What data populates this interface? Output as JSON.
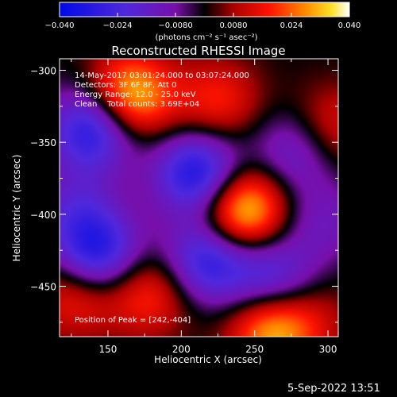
{
  "chart_data": {
    "type": "heatmap",
    "title": "Reconstructed RHESSI Image",
    "xlabel": "Heliocentric X (arcsec)",
    "ylabel": "Heliocentric Y (arcsec)",
    "xlim": [
      117,
      307
    ],
    "ylim": [
      -485,
      -292
    ],
    "xticks": [
      150,
      200,
      250,
      300
    ],
    "yticks": [
      -300,
      -350,
      -400,
      -450
    ],
    "colorbar": {
      "label": "(photons cm⁻² s⁻¹ asec⁻²)",
      "range": [
        -0.04,
        0.04
      ],
      "ticks": [
        "−0.040",
        "−0.024",
        "−0.0080",
        "0.0080",
        "0.024",
        "0.040"
      ],
      "colormap": "rainbow-to-white"
    },
    "annotations": [
      "14-May-2017 03:01:24.000 to 03:07:24.000",
      "Detectors: 3F 6F 8F, Att 0",
      "Energy Range: 12.0 - 25.0 keV",
      "Clean    Total counts: 3.69E+04"
    ],
    "peak_label": "Position of Peak = [242,-404]",
    "peak": [
      242,
      -404
    ],
    "features": [
      {
        "x": 242,
        "y": -397,
        "value": 0.04
      },
      {
        "x": 165,
        "y": -318,
        "value": 0.036
      },
      {
        "x": 225,
        "y": -322,
        "value": 0.018
      },
      {
        "x": 178,
        "y": -455,
        "value": 0.02
      },
      {
        "x": 262,
        "y": -480,
        "value": 0.032
      },
      {
        "x": 128,
        "y": -455,
        "value": 0.02
      },
      {
        "x": 302,
        "y": -340,
        "value": 0.016
      },
      {
        "x": 292,
        "y": -472,
        "value": 0.008
      },
      {
        "x": 140,
        "y": -340,
        "value": -0.034
      },
      {
        "x": 212,
        "y": -372,
        "value": -0.036
      },
      {
        "x": 142,
        "y": -428,
        "value": -0.034
      },
      {
        "x": 218,
        "y": -432,
        "value": -0.03
      },
      {
        "x": 262,
        "y": -445,
        "value": -0.024
      },
      {
        "x": 278,
        "y": -356,
        "value": -0.018
      },
      {
        "x": 128,
        "y": -395,
        "value": -0.014
      },
      {
        "x": 296,
        "y": -405,
        "value": -0.012
      }
    ]
  },
  "footer": {
    "date": "5-Sep-2022 13:51"
  }
}
